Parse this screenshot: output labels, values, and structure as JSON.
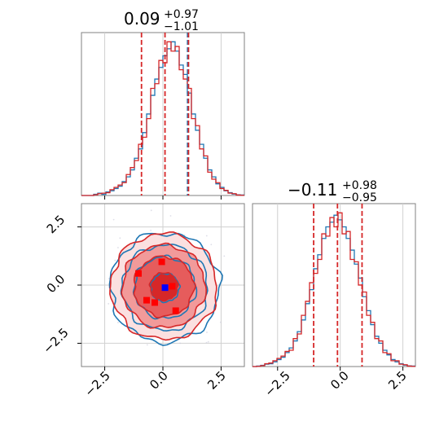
{
  "chart_data": [
    {
      "type": "histogram",
      "panel": "top-left",
      "title_value": "0.09",
      "title_plus": "+0.97",
      "title_minus": "−1.01",
      "xlim": [
        -3.5,
        3.5
      ],
      "grid": true,
      "bin_edges_start": -3.5,
      "bin_width": 0.175,
      "series": [
        {
          "color": "#1f77b4",
          "density": [
            0,
            0,
            0,
            0.005,
            0.01,
            0.005,
            0.015,
            0.02,
            0.03,
            0.04,
            0.06,
            0.08,
            0.11,
            0.16,
            0.2,
            0.27,
            0.35,
            0.43,
            0.5,
            0.55,
            0.6,
            0.63,
            0.66,
            0.62,
            0.56,
            0.52,
            0.44,
            0.35,
            0.28,
            0.22,
            0.16,
            0.11,
            0.08,
            0.05,
            0.035,
            0.02,
            0.012,
            0.006,
            0.003,
            0.002
          ]
        },
        {
          "color": "#d62728",
          "density": [
            0,
            0,
            0,
            0.003,
            0.008,
            0.01,
            0.012,
            0.025,
            0.035,
            0.045,
            0.055,
            0.09,
            0.12,
            0.15,
            0.22,
            0.25,
            0.33,
            0.46,
            0.48,
            0.58,
            0.57,
            0.66,
            0.62,
            0.64,
            0.54,
            0.5,
            0.46,
            0.33,
            0.3,
            0.2,
            0.17,
            0.1,
            0.07,
            0.055,
            0.03,
            0.022,
            0.01,
            0.008,
            0.002,
            0.001
          ]
        }
      ],
      "vlines": [
        {
          "x": -0.92,
          "color": "#d62728"
        },
        {
          "x": 0.09,
          "color": "#d62728"
        },
        {
          "x": 1.06,
          "color": "#1f77b4"
        },
        {
          "x": 1.1,
          "color": "#d62728"
        }
      ]
    },
    {
      "type": "contour",
      "panel": "bottom-left",
      "xlim": [
        -3.5,
        3.5
      ],
      "ylim": [
        -3.5,
        3.5
      ],
      "xticks": [
        "−2.5",
        "0.0",
        "2.5"
      ],
      "yticks": [
        "−2.5",
        "0.0",
        "2.5"
      ],
      "xtick_values": [
        -2.5,
        0,
        2.5
      ],
      "ytick_values": [
        -2.5,
        0,
        2.5
      ],
      "grid": true,
      "contour_levels_sigma": [
        0.6,
        1.3,
        1.8,
        2.3
      ],
      "fill_colors": [
        "#d62728",
        "#e65c5c",
        "#f29a9a",
        "#fbe0e0"
      ],
      "blue_center": {
        "x": 0.09,
        "y": -0.11
      },
      "red_squares": [
        {
          "x": -1.05,
          "y": 0.5
        },
        {
          "x": -0.7,
          "y": -0.65
        },
        {
          "x": -0.35,
          "y": -0.75
        },
        {
          "x": -0.05,
          "y": 1.0
        },
        {
          "x": 0.4,
          "y": -0.05
        },
        {
          "x": 0.55,
          "y": -1.1
        }
      ]
    },
    {
      "type": "histogram",
      "panel": "bottom-right",
      "title_value": "−0.11",
      "title_plus": "+0.98",
      "title_minus": "−0.95",
      "xlim": [
        -3.5,
        3.0
      ],
      "xticks": [
        "−2.5",
        "0.0",
        "2.5"
      ],
      "xtick_values": [
        -2.5,
        0,
        2.5
      ],
      "grid": true,
      "bin_edges_start": -3.5,
      "bin_width": 0.1625,
      "series": [
        {
          "color": "#1f77b4",
          "density": [
            0,
            0.002,
            0.005,
            0.01,
            0.012,
            0.02,
            0.03,
            0.04,
            0.06,
            0.08,
            0.11,
            0.15,
            0.2,
            0.27,
            0.33,
            0.42,
            0.48,
            0.55,
            0.6,
            0.62,
            0.65,
            0.63,
            0.6,
            0.55,
            0.5,
            0.44,
            0.38,
            0.3,
            0.24,
            0.18,
            0.13,
            0.1,
            0.07,
            0.05,
            0.03,
            0.02,
            0.012,
            0.006,
            0.003,
            0.002
          ]
        },
        {
          "color": "#d62728",
          "density": [
            0,
            0.001,
            0.004,
            0.012,
            0.015,
            0.025,
            0.035,
            0.045,
            0.065,
            0.07,
            0.12,
            0.14,
            0.22,
            0.28,
            0.36,
            0.4,
            0.46,
            0.57,
            0.56,
            0.64,
            0.6,
            0.66,
            0.57,
            0.58,
            0.46,
            0.45,
            0.35,
            0.32,
            0.22,
            0.19,
            0.12,
            0.11,
            0.06,
            0.055,
            0.025,
            0.025,
            0.01,
            0.008,
            0.002,
            0.001
          ]
        }
      ],
      "vlines": [
        {
          "x": -1.06,
          "color": "#d62728"
        },
        {
          "x": -0.11,
          "color": "#d62728"
        },
        {
          "x": 0.87,
          "color": "#d62728"
        }
      ]
    }
  ]
}
